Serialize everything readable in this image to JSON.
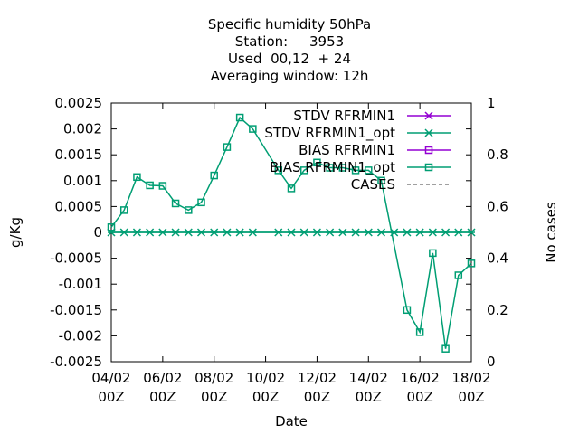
{
  "title_lines": [
    "Specific humidity 50hPa",
    "Station:     3953",
    "Used  00,12  + 24",
    "Averaging window: 12h"
  ],
  "chart_data": {
    "type": "line",
    "title": "Specific humidity 50hPa",
    "xlabel": "Date",
    "ylabel": "g/Kg",
    "y2label": "No cases",
    "ylim": [
      -0.0025,
      0.0025
    ],
    "y2lim": [
      0,
      1
    ],
    "xlim": [
      0,
      28
    ],
    "x_tick_labels": [
      {
        "x": 0,
        "l1": "04/02",
        "l2": "00Z"
      },
      {
        "x": 4,
        "l1": "06/02",
        "l2": "00Z"
      },
      {
        "x": 8,
        "l1": "08/02",
        "l2": "00Z"
      },
      {
        "x": 12,
        "l1": "10/02",
        "l2": "00Z"
      },
      {
        "x": 16,
        "l1": "12/02",
        "l2": "00Z"
      },
      {
        "x": 20,
        "l1": "14/02",
        "l2": "00Z"
      },
      {
        "x": 24,
        "l1": "16/02",
        "l2": "00Z"
      },
      {
        "x": 28,
        "l1": "18/02",
        "l2": "00Z"
      }
    ],
    "y_ticks": [
      "0.0025",
      "0.002",
      "0.0015",
      "0.001",
      "0.0005",
      "0",
      "-0.0005",
      "-0.001",
      "-0.0015",
      "-0.002",
      "-0.0025"
    ],
    "y2_ticks": [
      "1",
      "0.8",
      "0.6",
      "0.4",
      "0.2",
      "0"
    ],
    "legend": [
      {
        "label": "STDV RFRMIN1",
        "color": "#9400d3",
        "marker": "star",
        "dash": false
      },
      {
        "label": "STDV RFRMIN1_opt",
        "color": "#009e73",
        "marker": "star",
        "dash": false
      },
      {
        "label": "BIAS RFRMIN1",
        "color": "#9400d3",
        "marker": "square",
        "dash": false
      },
      {
        "label": "BIAS RFRMIN1_opt",
        "color": "#009e73",
        "marker": "square",
        "dash": false
      },
      {
        "label": "CASES",
        "color": "#808080",
        "marker": "none",
        "dash": true
      }
    ],
    "series": [
      {
        "name": "STDV RFRMIN1_opt",
        "color": "#009e73",
        "marker": "star",
        "x": [
          0,
          1,
          2,
          3,
          4,
          5,
          6,
          7,
          8,
          9,
          10,
          11,
          13,
          14,
          15,
          16,
          17,
          18,
          19,
          20,
          21,
          22,
          23,
          24,
          25,
          26,
          27,
          28
        ],
        "y": [
          0,
          0,
          0,
          0,
          0,
          0,
          0,
          0,
          0,
          0,
          0,
          0,
          0,
          0,
          0,
          0,
          0,
          0,
          0,
          0,
          0,
          0,
          0,
          0,
          0,
          0,
          0,
          0
        ]
      },
      {
        "name": "BIAS RFRMIN1_opt",
        "color": "#009e73",
        "marker": "square",
        "x": [
          0,
          1,
          2,
          3,
          4,
          5,
          6,
          7,
          8,
          9,
          10,
          11,
          13,
          14,
          15,
          16,
          17,
          18,
          19,
          20,
          21,
          23,
          24,
          25,
          26,
          27,
          28
        ],
        "y": [
          0.0001,
          0.00043,
          0.00107,
          0.00091,
          0.0009,
          0.00056,
          0.00043,
          0.00058,
          0.0011,
          0.00165,
          0.00222,
          0.002,
          0.0012,
          0.00085,
          0.0012,
          0.00135,
          0.00125,
          0.00125,
          0.0012,
          0.0012,
          0.001,
          -0.0015,
          -0.00193,
          -0.0004,
          -0.00225,
          -0.00083,
          -0.0006
        ]
      }
    ]
  }
}
